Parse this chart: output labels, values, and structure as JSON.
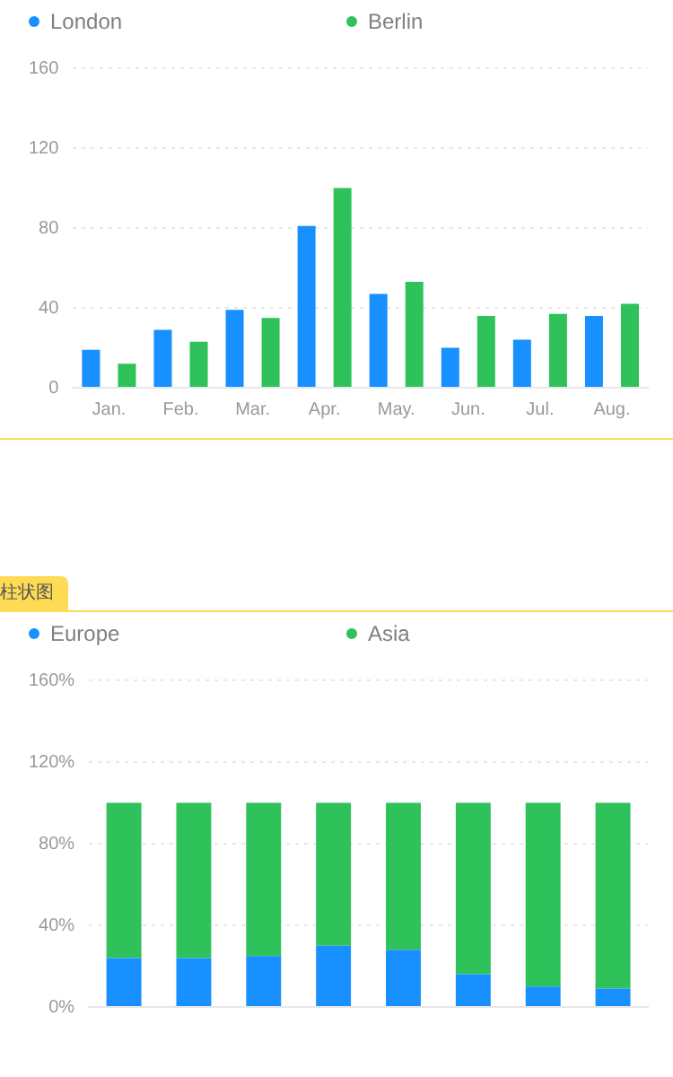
{
  "chart_data": [
    {
      "type": "bar",
      "categories": [
        "Jan.",
        "Feb.",
        "Mar.",
        "Apr.",
        "May.",
        "Jun.",
        "Jul.",
        "Aug."
      ],
      "series": [
        {
          "name": "London",
          "color": "#1890ff",
          "values": [
            19,
            29,
            39,
            81,
            47,
            20,
            24,
            36
          ]
        },
        {
          "name": "Berlin",
          "color": "#2fc25b",
          "values": [
            12,
            23,
            35,
            100,
            53,
            36,
            37,
            42
          ]
        }
      ],
      "ylim": [
        0,
        160
      ],
      "yticks": [
        0,
        40,
        80,
        120,
        160
      ],
      "grid": "y",
      "legend": "top"
    },
    {
      "type": "bar",
      "title": "柱状图",
      "categories": [
        null,
        null,
        null,
        null,
        null,
        null,
        null,
        null
      ],
      "series": [
        {
          "name": "Europe",
          "color": "#1890ff",
          "values": [
            24,
            24,
            25,
            30,
            28,
            16,
            10,
            9
          ]
        },
        {
          "name": "Asia",
          "color": "#2fc25b",
          "values": [
            76,
            76,
            75,
            70,
            72,
            84,
            90,
            91
          ]
        }
      ],
      "stacked": true,
      "ylim": [
        0,
        160
      ],
      "yticks": [
        {
          "value": 0,
          "label": "0%"
        },
        {
          "value": 40,
          "label": "40%"
        },
        {
          "value": 80,
          "label": "80%"
        },
        {
          "value": 120,
          "label": "120%"
        },
        {
          "value": 160,
          "label": "160%"
        }
      ],
      "grid": "y",
      "legend": "top",
      "tick_labels": "y"
    }
  ]
}
